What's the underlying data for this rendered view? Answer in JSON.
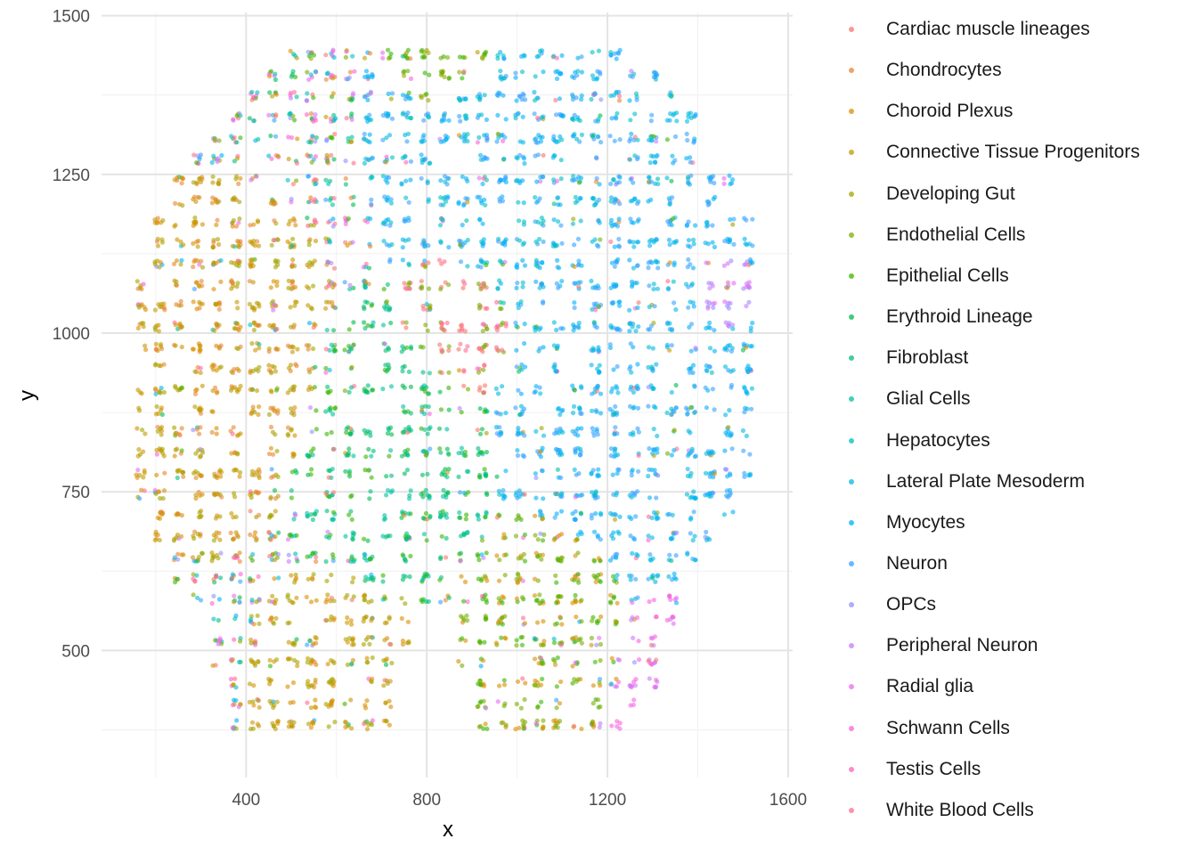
{
  "chart_data": {
    "type": "scatter",
    "title": "",
    "xlabel": "x",
    "ylabel": "y",
    "xlim": [
      80,
      1610
    ],
    "ylim": [
      300,
      1505
    ],
    "x_ticks": [
      400,
      800,
      1200,
      1600
    ],
    "x_minor_ticks": [
      200,
      600,
      1000,
      1400
    ],
    "y_ticks": [
      500,
      750,
      1000,
      1250,
      1500
    ],
    "y_minor_ticks": [
      375,
      625,
      875,
      1125,
      1375
    ],
    "grid": true,
    "legend_position": "right",
    "theme": "minimal",
    "point_alpha": 0.6,
    "series": [
      {
        "name": "Cardiac muscle lineages",
        "color": "#F8766D"
      },
      {
        "name": "Chondrocytes",
        "color": "#EA8331"
      },
      {
        "name": "Choroid Plexus",
        "color": "#D89000"
      },
      {
        "name": "Connective Tissue Progenitors",
        "color": "#C09B00"
      },
      {
        "name": "Developing Gut",
        "color": "#A3A500"
      },
      {
        "name": "Endothelial Cells",
        "color": "#7CAE00"
      },
      {
        "name": "Epithelial Cells",
        "color": "#39B600"
      },
      {
        "name": "Erythroid Lineage",
        "color": "#00BB4E"
      },
      {
        "name": "Fibroblast",
        "color": "#00BF7D"
      },
      {
        "name": "Glial Cells",
        "color": "#00C1A3"
      },
      {
        "name": "Hepatocytes",
        "color": "#00BFC4"
      },
      {
        "name": "Lateral Plate Mesoderm",
        "color": "#00BAE0"
      },
      {
        "name": "Myocytes",
        "color": "#00B0F6"
      },
      {
        "name": "Neuron",
        "color": "#35A2FF"
      },
      {
        "name": "OPCs",
        "color": "#9590FF"
      },
      {
        "name": "Peripheral Neuron",
        "color": "#C77CFF"
      },
      {
        "name": "Radial glia",
        "color": "#E76BF3"
      },
      {
        "name": "Schwann Cells",
        "color": "#FA62DB"
      },
      {
        "name": "Testis Cells",
        "color": "#FF62BC"
      },
      {
        "name": "White Blood Cells",
        "color": "#FF6C91"
      }
    ],
    "spot_grid": {
      "x_start": 125,
      "x_step": 42,
      "x_count": 35,
      "y_start": 350,
      "y_step": 33,
      "y_count": 35,
      "points_per_spot": 7,
      "tissue_outline": [
        [
          -0.45,
          0.99
        ],
        [
          0.45,
          0.99
        ],
        [
          0.72,
          0.85
        ],
        [
          0.93,
          0.55
        ],
        [
          1.0,
          0.15
        ],
        [
          0.96,
          -0.25
        ],
        [
          0.82,
          -0.45
        ],
        [
          0.7,
          -0.72
        ],
        [
          0.6,
          -0.98
        ],
        [
          0.1,
          -0.98
        ],
        [
          0.02,
          -0.62
        ],
        [
          -0.1,
          -0.62
        ],
        [
          -0.17,
          -0.98
        ],
        [
          -0.66,
          -0.98
        ],
        [
          -0.72,
          -0.72
        ],
        [
          -0.82,
          -0.55
        ],
        [
          -0.96,
          -0.3
        ],
        [
          -1.0,
          0.05
        ],
        [
          -0.92,
          0.45
        ],
        [
          -0.75,
          0.72
        ]
      ],
      "regions": [
        {
          "series": [
            "Developing Gut",
            "Connective Tissue Progenitors",
            "Choroid Plexus",
            "Chondrocytes"
          ],
          "center": [
            310,
            950
          ],
          "radius": 220
        },
        {
          "series": [
            "Erythroid Lineage",
            "Fibroblast",
            "Glial Cells",
            "Epithelial Cells"
          ],
          "center": [
            720,
            820
          ],
          "radius": 190
        },
        {
          "series": [
            "Cardiac muscle lineages",
            "White Blood Cells",
            "Endothelial Cells"
          ],
          "center": [
            860,
            1010
          ],
          "radius": 110
        },
        {
          "series": [
            "Neuron",
            "Myocytes",
            "Lateral Plate Mesoderm"
          ],
          "center": [
            1300,
            950
          ],
          "radius": 300
        },
        {
          "series": [
            "Neuron",
            "Myocytes",
            "Hepatocytes"
          ],
          "center": [
            1000,
            1300
          ],
          "radius": 250
        },
        {
          "series": [
            "Epithelial Cells",
            "Endothelial Cells",
            "Choroid Plexus"
          ],
          "center": [
            1060,
            540
          ],
          "radius": 150
        },
        {
          "series": [
            "Choroid Plexus",
            "Connective Tissue Progenitors",
            "Developing Gut"
          ],
          "center": [
            620,
            420
          ],
          "radius": 170
        },
        {
          "series": [
            "Radial glia",
            "Peripheral Neuron",
            "Schwann Cells"
          ],
          "center": [
            1390,
            430
          ],
          "radius": 160
        },
        {
          "series": [
            "Peripheral Neuron",
            "OPCs",
            "Radial glia"
          ],
          "center": [
            1450,
            1060
          ],
          "radius": 90
        },
        {
          "series": [
            "Endothelial Cells",
            "Epithelial Cells",
            "Developing Gut"
          ],
          "center": [
            870,
            1450
          ],
          "radius": 130
        }
      ]
    }
  }
}
